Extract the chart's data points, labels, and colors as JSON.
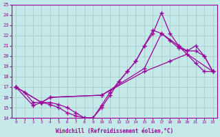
{
  "xlabel": "Windchill (Refroidissement éolien,°C)",
  "xlim": [
    -0.5,
    23.5
  ],
  "ylim": [
    14,
    25
  ],
  "xticks": [
    0,
    1,
    2,
    3,
    4,
    5,
    6,
    7,
    8,
    9,
    10,
    11,
    12,
    13,
    14,
    15,
    16,
    17,
    18,
    19,
    20,
    21,
    22,
    23
  ],
  "yticks": [
    14,
    15,
    16,
    17,
    18,
    19,
    20,
    21,
    22,
    23,
    24,
    25
  ],
  "bg_color": "#c5e8e8",
  "line_color": "#990099",
  "grid_color": "#a0c8c8",
  "line1_x": [
    0,
    1,
    2,
    3,
    4,
    10,
    15,
    17,
    19,
    20,
    21,
    22,
    23
  ],
  "line1_y": [
    17.0,
    16.5,
    15.5,
    15.5,
    16.0,
    16.2,
    18.8,
    22.2,
    21.0,
    20.5,
    21.0,
    20.0,
    18.5
  ],
  "line2_x": [
    0,
    2,
    3,
    4,
    5,
    6,
    7,
    8,
    9,
    10,
    11,
    12,
    13,
    14,
    15,
    16,
    17,
    18,
    19,
    21,
    22,
    23
  ],
  "line2_y": [
    17.0,
    15.2,
    15.5,
    15.3,
    15.0,
    14.5,
    14.2,
    14.0,
    14.0,
    15.2,
    16.5,
    17.5,
    18.5,
    19.5,
    21.0,
    22.2,
    24.2,
    22.2,
    21.0,
    19.3,
    18.5,
    18.5
  ],
  "line3_x": [
    0,
    3,
    4,
    5,
    6,
    7,
    8,
    9,
    10,
    11,
    12,
    13,
    14,
    15,
    16,
    17,
    18,
    19,
    20,
    21,
    22,
    23
  ],
  "line3_y": [
    17.0,
    15.5,
    15.5,
    15.3,
    15.0,
    14.5,
    14.0,
    14.0,
    15.0,
    16.2,
    17.5,
    18.5,
    19.5,
    21.0,
    22.5,
    22.2,
    21.5,
    20.8,
    20.5,
    20.5,
    20.0,
    18.5
  ],
  "line4_x": [
    0,
    3,
    4,
    10,
    15,
    18,
    20,
    23
  ],
  "line4_y": [
    17.0,
    15.5,
    16.0,
    16.2,
    18.5,
    19.5,
    20.2,
    18.5
  ]
}
